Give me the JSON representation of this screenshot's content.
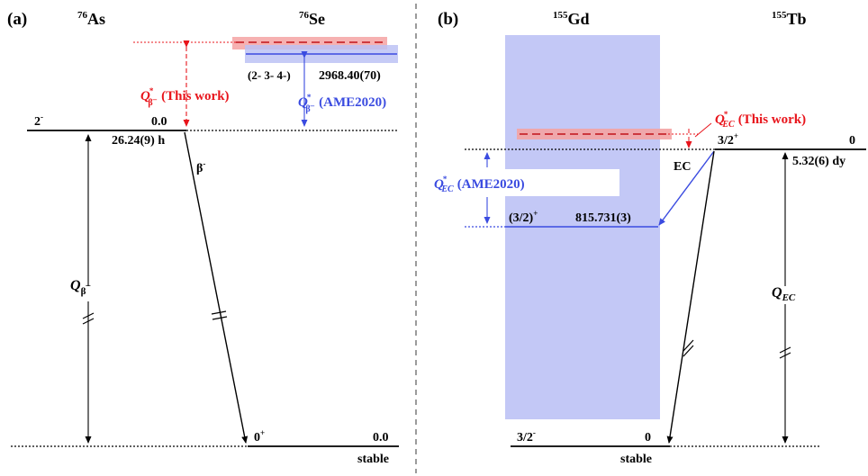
{
  "colors": {
    "red": "#e8141b",
    "blue": "#3a4be0",
    "band_blue": "#bcc2f5",
    "band_red": "#f4a3a3"
  },
  "panel_a": {
    "label": "(a)",
    "parent": {
      "mass": "76",
      "symbol": "As"
    },
    "daughter": {
      "mass": "76",
      "symbol": "Se"
    },
    "parent_level": {
      "spin": "2",
      "spin_sign": "-",
      "energy": "0.0",
      "halflife": "26.24(9) h"
    },
    "decay": {
      "symbol": "β",
      "sign": "-"
    },
    "excited_level": {
      "spin": "(2- 3- 4-)",
      "energy": "2968.40(70)"
    },
    "ground_level": {
      "spin": "0",
      "spin_sign": "+",
      "energy": "0.0",
      "status": "stable"
    },
    "q_this": {
      "q": "Q",
      "star": "*",
      "sub": "β",
      "subsup": "–",
      "note": "(This work)"
    },
    "q_ame": {
      "q": "Q",
      "star": "*",
      "sub": "β",
      "subsup": "–",
      "note": "(AME2020)"
    },
    "q_main": {
      "q": "Q",
      "sub": "β",
      "subsup": "–"
    }
  },
  "panel_b": {
    "label": "(b)",
    "parent": {
      "mass": "155",
      "symbol": "Tb"
    },
    "daughter": {
      "mass": "155",
      "symbol": "Gd"
    },
    "parent_level": {
      "spin": "3/2",
      "spin_sign": "+",
      "energy": "0",
      "halflife": "5.32(6) dy"
    },
    "decay": {
      "label": "EC"
    },
    "excited_level": {
      "spin": "(3/2)",
      "spin_sign": "+",
      "energy": "815.731(3)"
    },
    "ground_level": {
      "spin": "3/2",
      "spin_sign": "-",
      "energy": "0",
      "status": "stable"
    },
    "q_this": {
      "q": "Q",
      "star": "*",
      "sub": "EC",
      "note": "(This work)"
    },
    "q_ame": {
      "q": "Q",
      "star": "*",
      "sub": "EC",
      "note": "(AME2020)"
    },
    "q_main": {
      "q": "Q",
      "sub": "EC"
    }
  }
}
